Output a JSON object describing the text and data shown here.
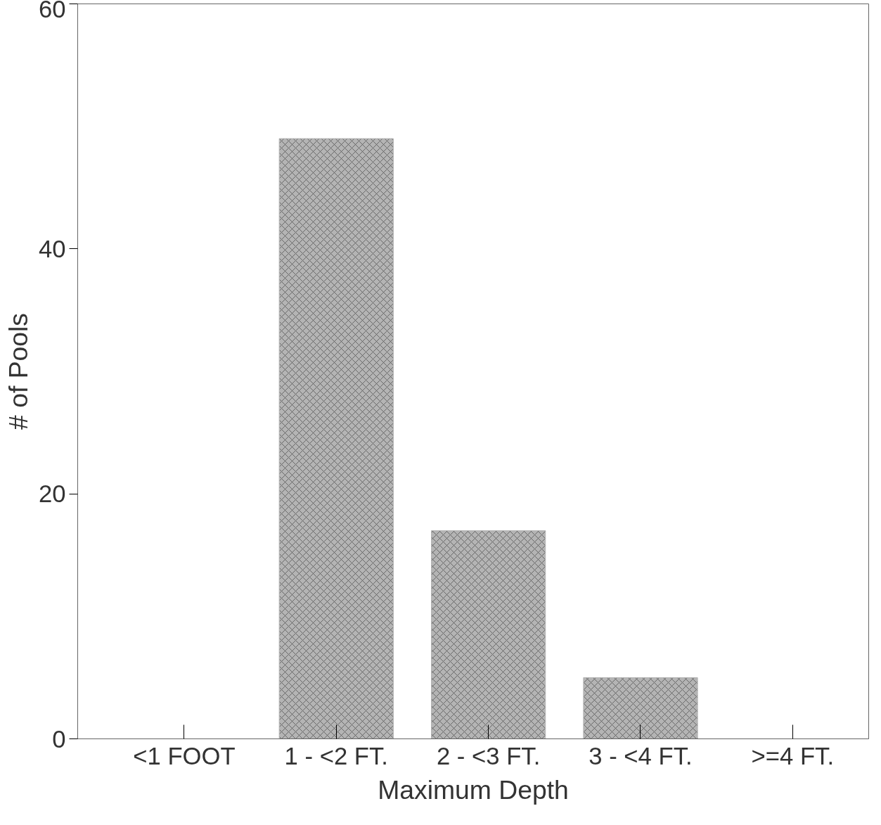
{
  "chart_data": {
    "type": "bar",
    "xlabel": "Maximum Depth",
    "ylabel": "# of Pools",
    "categories": [
      "<1 FOOT",
      "1 - <2 FT.",
      "2 - <3 FT.",
      "3 - <4 FT.",
      ">=4 FT."
    ],
    "values": [
      0,
      49,
      17,
      5,
      0
    ],
    "color": "#b4b4b4",
    "ylim": [
      0,
      60
    ],
    "yticks": [
      0,
      20,
      40,
      60
    ],
    "grid": false
  }
}
